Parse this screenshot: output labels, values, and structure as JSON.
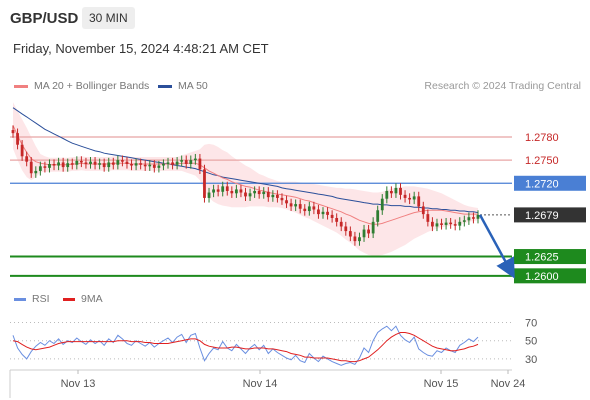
{
  "header": {
    "symbol": "GBP/USD",
    "timeframe": "30 MIN",
    "datetime": "Friday, November 15, 2024 4:48:21 AM CET"
  },
  "legend": {
    "ma20_label": "MA 20 + Bollinger Bands",
    "ma50_label": "MA 50",
    "source": "Research © 2024 Trading Central",
    "rsi_label": "RSI",
    "rsi_ma_label": "9MA"
  },
  "colors": {
    "ma20": "#f08080",
    "ma50": "#2b4f9a",
    "bollinger_fill": "#fde2e4",
    "candle_up": "#2e7d32",
    "candle_down": "#c62828",
    "resistance": "#e8a5a5",
    "pivot": "#4a7fd4",
    "support": "#1e8a1e",
    "current": "#333333",
    "rsi": "#6a8fe0",
    "rsi_ma": "#e02020",
    "arrow": "#2a62b8"
  },
  "chart_data": [
    {
      "type": "candlestick",
      "title": "GBP/USD",
      "timeframe": "30 MIN",
      "x_ticks": [
        "Nov 13",
        "Nov 14",
        "Nov 15",
        "Nov 24"
      ],
      "ylim": [
        1.2592,
        1.2815
      ],
      "levels": [
        {
          "value": 1.278,
          "label": "1.2780",
          "kind": "resistance"
        },
        {
          "value": 1.275,
          "label": "1.2750",
          "kind": "resistance"
        },
        {
          "value": 1.272,
          "label": "1.2720",
          "kind": "pivot"
        },
        {
          "value": 1.2679,
          "label": "1.2679",
          "kind": "current"
        },
        {
          "value": 1.2625,
          "label": "1.2625",
          "kind": "support"
        },
        {
          "value": 1.26,
          "label": "1.2600",
          "kind": "support"
        }
      ],
      "close": [
        1.2785,
        1.277,
        1.2755,
        1.2748,
        1.2733,
        1.2736,
        1.2742,
        1.274,
        1.2745,
        1.2743,
        1.2747,
        1.2741,
        1.2746,
        1.2744,
        1.2749,
        1.2747,
        1.2745,
        1.2748,
        1.2744,
        1.2746,
        1.2741,
        1.2747,
        1.2744,
        1.275,
        1.2748,
        1.2745,
        1.2743,
        1.2746,
        1.2744,
        1.2742,
        1.2744,
        1.274,
        1.2743,
        1.2745,
        1.2747,
        1.2744,
        1.2748,
        1.275,
        1.2745,
        1.275,
        1.2752,
        1.2738,
        1.2701,
        1.2708,
        1.2712,
        1.2709,
        1.2716,
        1.271,
        1.2707,
        1.2712,
        1.2708,
        1.2703,
        1.2707,
        1.271,
        1.2706,
        1.2709,
        1.2702,
        1.2705,
        1.2701,
        1.2698,
        1.2694,
        1.269,
        1.2693,
        1.2687,
        1.2684,
        1.269,
        1.2686,
        1.268,
        1.2683,
        1.2679,
        1.2675,
        1.267,
        1.2664,
        1.2658,
        1.2651,
        1.2645,
        1.265,
        1.266,
        1.2655,
        1.267,
        1.2685,
        1.27,
        1.271,
        1.2707,
        1.2714,
        1.2705,
        1.2701,
        1.2699,
        1.2703,
        1.269,
        1.268,
        1.267,
        1.2664,
        1.2668,
        1.2666,
        1.2669,
        1.2667,
        1.2665,
        1.267,
        1.2672,
        1.2676,
        1.2674,
        1.2679
      ],
      "ma20": [
        1.2795,
        1.2782,
        1.277,
        1.276,
        1.2752,
        1.2748,
        1.2746,
        1.2745,
        1.2744,
        1.2744,
        1.2744,
        1.2744,
        1.2744,
        1.2745,
        1.2745,
        1.2746,
        1.2745,
        1.2745,
        1.2745,
        1.2745,
        1.2745,
        1.2745,
        1.2746,
        1.2746,
        1.2746,
        1.2746,
        1.2745,
        1.2745,
        1.2745,
        1.2745,
        1.2745,
        1.2745,
        1.2745,
        1.2745,
        1.2745,
        1.2745,
        1.2745,
        1.2746,
        1.2746,
        1.2746,
        1.2746,
        1.2744,
        1.274,
        1.2736,
        1.2733,
        1.273,
        1.2727,
        1.2725,
        1.2722,
        1.272,
        1.2718,
        1.2716,
        1.2715,
        1.2713,
        1.2711,
        1.271,
        1.2708,
        1.2707,
        1.2706,
        1.2705,
        1.2704,
        1.2703,
        1.2702,
        1.27,
        1.2698,
        1.2697,
        1.2695,
        1.2693,
        1.2691,
        1.2689,
        1.2687,
        1.2685,
        1.2683,
        1.268,
        1.2678,
        1.2675,
        1.2672,
        1.267,
        1.2668,
        1.2667,
        1.2667,
        1.2668,
        1.267,
        1.2672,
        1.2674,
        1.2676,
        1.2678,
        1.268,
        1.2682,
        1.2683,
        1.2684,
        1.2685,
        1.2685,
        1.2685,
        1.2685,
        1.2684,
        1.2683,
        1.2682,
        1.2681,
        1.268,
        1.268,
        1.268,
        1.268
      ],
      "ma50": [
        1.2818,
        1.2814,
        1.281,
        1.2806,
        1.2802,
        1.2798,
        1.2794,
        1.279,
        1.2787,
        1.2784,
        1.2781,
        1.2778,
        1.2775,
        1.2772,
        1.277,
        1.2768,
        1.2766,
        1.2764,
        1.2762,
        1.2761,
        1.2759,
        1.2758,
        1.2757,
        1.2756,
        1.2755,
        1.2754,
        1.2753,
        1.2752,
        1.2751,
        1.275,
        1.2749,
        1.2748,
        1.2747,
        1.2746,
        1.2745,
        1.2744,
        1.2743,
        1.2742,
        1.2741,
        1.274,
        1.2739,
        1.2737,
        1.2735,
        1.2733,
        1.2731,
        1.273,
        1.2728,
        1.2727,
        1.2726,
        1.2725,
        1.2724,
        1.2723,
        1.2722,
        1.2721,
        1.272,
        1.2719,
        1.2718,
        1.2717,
        1.2716,
        1.2714,
        1.2713,
        1.2712,
        1.2711,
        1.271,
        1.2709,
        1.2708,
        1.2707,
        1.2706,
        1.2705,
        1.2704,
        1.2703,
        1.2701,
        1.27,
        1.2699,
        1.2698,
        1.2697,
        1.2696,
        1.2695,
        1.2694,
        1.2693,
        1.2693,
        1.2692,
        1.2692,
        1.2691,
        1.2691,
        1.2691,
        1.269,
        1.269,
        1.2689,
        1.2689,
        1.2688,
        1.2688,
        1.2687,
        1.2687,
        1.2686,
        1.2686,
        1.2685,
        1.2685,
        1.2684,
        1.2684,
        1.2683,
        1.2683,
        1.2682
      ],
      "band_width": [
        0.003,
        0.0032,
        0.0033,
        0.0032,
        0.0028,
        0.002,
        0.0012,
        0.001,
        0.0009,
        0.0009,
        0.0009,
        0.0009,
        0.0009,
        0.0009,
        0.0009,
        0.0009,
        0.0009,
        0.0009,
        0.0009,
        0.0009,
        0.0009,
        0.0009,
        0.0009,
        0.0009,
        0.0009,
        0.0009,
        0.0009,
        0.0009,
        0.0009,
        0.0009,
        0.0009,
        0.0009,
        0.0009,
        0.0009,
        0.0009,
        0.0009,
        0.0009,
        0.001,
        0.0012,
        0.0014,
        0.0016,
        0.002,
        0.003,
        0.0035,
        0.0037,
        0.0037,
        0.0036,
        0.0035,
        0.0033,
        0.0031,
        0.0029,
        0.0027,
        0.0025,
        0.0023,
        0.0021,
        0.002,
        0.0019,
        0.0018,
        0.0017,
        0.0017,
        0.0018,
        0.0019,
        0.002,
        0.0021,
        0.0022,
        0.0023,
        0.0024,
        0.0025,
        0.0026,
        0.0027,
        0.0028,
        0.0029,
        0.0031,
        0.0033,
        0.0035,
        0.0037,
        0.0039,
        0.004,
        0.0041,
        0.0041,
        0.0041,
        0.0041,
        0.0041,
        0.0041,
        0.004,
        0.0039,
        0.0038,
        0.0036,
        0.0034,
        0.0032,
        0.003,
        0.0028,
        0.0026,
        0.0024,
        0.0022,
        0.002,
        0.0018,
        0.0016,
        0.0014,
        0.0012,
        0.001,
        0.0009,
        0.0008
      ],
      "forecast": {
        "from": 1.2679,
        "to": 1.26
      }
    },
    {
      "type": "line",
      "title": "RSI",
      "ylim": [
        20,
        75
      ],
      "y_ticks": [
        70,
        50,
        30
      ],
      "series": [
        {
          "name": "RSI",
          "values": [
            56,
            42,
            35,
            30,
            38,
            44,
            48,
            45,
            50,
            47,
            52,
            46,
            50,
            48,
            53,
            49,
            46,
            51,
            47,
            50,
            45,
            52,
            48,
            56,
            52,
            47,
            45,
            50,
            47,
            44,
            48,
            43,
            47,
            50,
            53,
            48,
            54,
            57,
            48,
            56,
            58,
            42,
            28,
            36,
            42,
            40,
            49,
            42,
            39,
            46,
            41,
            36,
            42,
            46,
            40,
            45,
            36,
            41,
            37,
            34,
            31,
            29,
            34,
            28,
            26,
            36,
            31,
            27,
            33,
            30,
            27,
            25,
            23,
            25,
            26,
            24,
            31,
            42,
            37,
            50,
            59,
            63,
            66,
            61,
            66,
            56,
            51,
            48,
            54,
            41,
            37,
            34,
            33,
            39,
            37,
            42,
            39,
            37,
            45,
            48,
            52,
            49,
            54
          ]
        },
        {
          "name": "9MA",
          "values": [
            50,
            49,
            46,
            43,
            41,
            40,
            41,
            42,
            43,
            45,
            47,
            48,
            49,
            49,
            49,
            49,
            49,
            49,
            49,
            49,
            49,
            49,
            49,
            50,
            50,
            50,
            49,
            49,
            49,
            48,
            48,
            47,
            47,
            47,
            47,
            48,
            49,
            50,
            51,
            52,
            52,
            50,
            46,
            44,
            43,
            42,
            42,
            42,
            43,
            43,
            42,
            41,
            41,
            42,
            42,
            42,
            41,
            41,
            40,
            39,
            38,
            36,
            35,
            34,
            32,
            32,
            31,
            31,
            31,
            31,
            30,
            29,
            28,
            28,
            27,
            27,
            28,
            30,
            32,
            36,
            40,
            45,
            50,
            54,
            57,
            59,
            59,
            58,
            56,
            53,
            50,
            47,
            44,
            42,
            41,
            40,
            39,
            39,
            40,
            41,
            43,
            44,
            46
          ]
        }
      ]
    }
  ]
}
